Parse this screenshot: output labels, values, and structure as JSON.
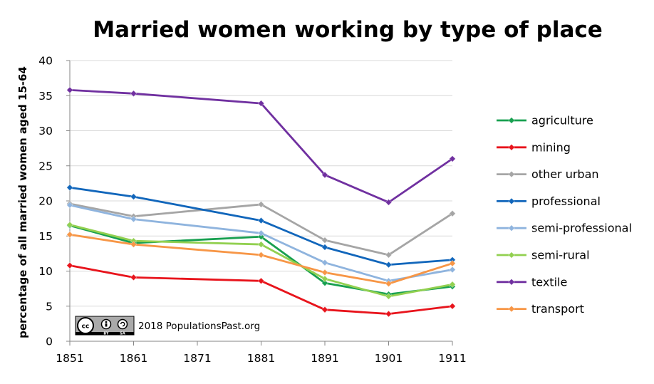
{
  "chart_data": {
    "type": "line",
    "title": "Married women working by type of place",
    "ylabel": "percentage of all married women aged 15-64",
    "xlabel": "",
    "x": [
      1851,
      1861,
      1881,
      1891,
      1901,
      1911
    ],
    "xticks": [
      "1851",
      "1861",
      "1871",
      "1881",
      "1891",
      "1901",
      "1911"
    ],
    "xlim": [
      1851,
      1911
    ],
    "yticks": [
      "0",
      "5",
      "10",
      "15",
      "20",
      "25",
      "30",
      "35",
      "40"
    ],
    "ylim": [
      0,
      40
    ],
    "grid": "horizontal",
    "legend_position": "right",
    "series": [
      {
        "name": "agriculture",
        "color": "#18a050",
        "values": [
          16.5,
          14.0,
          14.9,
          8.3,
          6.7,
          7.8
        ]
      },
      {
        "name": "mining",
        "color": "#e8141c",
        "values": [
          10.8,
          9.1,
          8.6,
          4.5,
          3.9,
          5.0
        ]
      },
      {
        "name": "other urban",
        "color": "#a5a5a5",
        "values": [
          19.6,
          17.8,
          19.5,
          14.4,
          12.3,
          18.2
        ]
      },
      {
        "name": "professional",
        "color": "#1166bb",
        "values": [
          21.9,
          20.6,
          17.2,
          13.4,
          10.9,
          11.6
        ]
      },
      {
        "name": "semi-professional",
        "color": "#8fb4de",
        "values": [
          19.4,
          17.4,
          15.4,
          11.2,
          8.6,
          10.2
        ]
      },
      {
        "name": "semi-rural",
        "color": "#92d050",
        "values": [
          16.6,
          14.3,
          13.8,
          8.9,
          6.4,
          8.1
        ]
      },
      {
        "name": "textile",
        "color": "#7030a0",
        "values": [
          35.8,
          35.3,
          33.9,
          23.7,
          19.8,
          26.0
        ]
      },
      {
        "name": "transport",
        "color": "#f79646",
        "values": [
          15.2,
          13.8,
          12.3,
          9.8,
          8.2,
          11.1
        ]
      }
    ]
  },
  "credit": {
    "text": "2018 PopulationsPast.org",
    "license": "CC BY SA",
    "license_cc": "cc",
    "license_by": "BY",
    "license_sa": "SA"
  }
}
